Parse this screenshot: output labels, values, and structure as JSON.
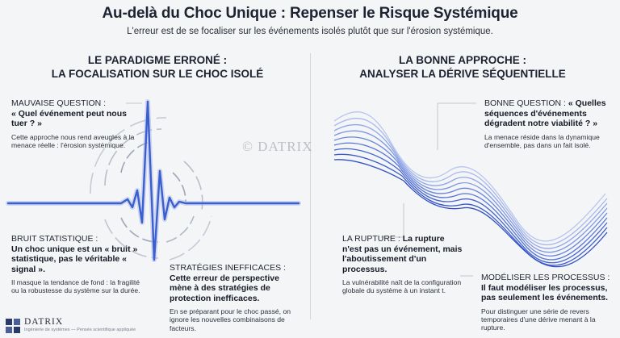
{
  "header": {
    "title": "Au-delà du Choc Unique : Repenser le Risque Systémique",
    "subtitle": "L'erreur est de se focaliser sur les événements isolés plutôt que sur l'érosion systémique."
  },
  "left": {
    "heading_line1": "LE PARADIGME ERRONÉ :",
    "heading_line2": "LA FOCALISATION SUR LE CHOC ISOLÉ",
    "question": {
      "label": "MAUVAISE QUESTION :",
      "strong": "« Quel événement peut nous tuer ? »",
      "desc": "Cette approche nous rend aveugles à la menace réelle : l'érosion systémique."
    },
    "noise": {
      "label": "BRUIT STATISTIQUE :",
      "strong": "Un choc unique est un « bruit » statistique, pas le véritable « signal ».",
      "desc": "Il masque la tendance de fond : la fragilité ou la robustesse du système sur la durée."
    },
    "strategies": {
      "label": "STRATÉGIES INEFFICACES :",
      "strong": "Cette erreur de perspective mène à des stratégies de protection inefficaces.",
      "desc": "En se préparant pour le choc passé, on ignore les nouvelles combinaisons de facteurs."
    }
  },
  "right": {
    "heading_line1": "LA BONNE APPROCHE :",
    "heading_line2": "ANALYSER LA DÉRIVE SÉQUENTIELLE",
    "question": {
      "label": "BONNE QUESTION :",
      "strong": "« Quelles séquences d'événements dégradent notre viabilité ? »",
      "desc": "La menace réside dans la dynamique d'ensemble, pas dans un fait isolé."
    },
    "rupture": {
      "label": "LA RUPTURE :",
      "strong": "La rupture n'est pas un événement, mais l'aboutissement d'un processus.",
      "desc": "La vulnérabilité naît de la configuration globale du système à un instant t."
    },
    "model": {
      "label": "MODÉLISER LES PROCESSUS :",
      "strong": "Il faut modéliser les processus, pas seulement les événements.",
      "desc": "Pour distinguer une série de revers temporaires d'une dérive menant à la rupture."
    }
  },
  "watermark": "© DATRIX",
  "brand": {
    "name": "DATRIX",
    "tagline": "Ingénierie de systèmes — Pensée scientifique appliquée"
  },
  "colors": {
    "accent": "#3a5fd0",
    "wave_light": "#b8c6ee",
    "text": "#1f2430"
  },
  "icons": [
    "spike-wave-icon",
    "ripple-rings-icon",
    "ribbon-wave-icon",
    "datrix-logo-icon"
  ]
}
